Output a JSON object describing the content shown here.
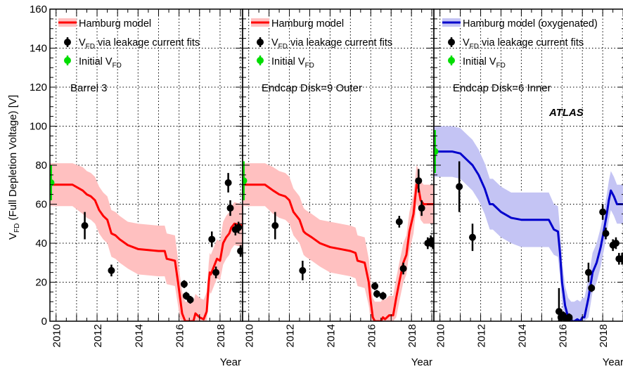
{
  "chart_data": {
    "type": "line",
    "ylabel_main": "V",
    "ylabel_sub": "FD",
    "ylabel_rest": " (Full Depletion Voltage) [V]",
    "ylim": [
      0,
      160
    ],
    "yticks": [
      0,
      20,
      40,
      60,
      80,
      100,
      120,
      140,
      160
    ],
    "xlim": [
      2009.7,
      2019.1
    ],
    "xticks": [
      2010,
      2012,
      2014,
      2016,
      2018
    ],
    "xtick_labels": [
      "2010",
      "2012",
      "2014",
      "2016",
      "2018"
    ],
    "xlabel": "Year",
    "grid": true,
    "atlas_label": "ATLAS",
    "legend_text": {
      "leak_main": "V",
      "leak_sub": "FD",
      "leak_rest": " via leakage current fits",
      "init_main": "Initial V",
      "init_sub": "FD"
    },
    "colors": {
      "red_line": "#ff0000",
      "red_band": "#ffc0c0",
      "blue_line": "#0000cc",
      "blue_band": "#c4c4f4",
      "green": "#00dd00",
      "points": "#000000"
    },
    "panels": [
      {
        "annotation": "Barrel 3",
        "model_label": "Hamburg model",
        "model_color": "red",
        "model": {
          "x": [
            2009.7,
            2010.8,
            2011.3,
            2011.5,
            2011.7,
            2011.9,
            2012.1,
            2012.3,
            2012.5,
            2012.7,
            2012.9,
            2013.1,
            2013.5,
            2014.0,
            2014.5,
            2015.0,
            2015.3,
            2015.4,
            2015.8,
            2015.95,
            2016.05,
            2016.15,
            2016.3,
            2016.5,
            2016.7,
            2016.8,
            2017.0,
            2017.2,
            2017.35,
            2017.45,
            2017.5,
            2017.55,
            2017.7,
            2017.85,
            2018.0,
            2018.15,
            2018.3,
            2018.45,
            2018.55,
            2018.7,
            2019.1
          ],
          "y": [
            70,
            70,
            67,
            65,
            64,
            62,
            57,
            54,
            52,
            45,
            44,
            42,
            39,
            37,
            36.5,
            36,
            36,
            32,
            31,
            20,
            12,
            4,
            0,
            0,
            0,
            4,
            2,
            1,
            5,
            20,
            25,
            24,
            28,
            32,
            31,
            40,
            43,
            45,
            48,
            50,
            49
          ],
          "band_width": [
            11,
            11,
            12,
            12,
            12,
            12,
            12,
            12,
            12,
            12,
            12,
            12,
            12,
            13,
            13,
            13,
            13,
            13,
            13,
            12,
            11,
            11,
            10,
            10,
            10,
            10,
            10,
            10,
            10,
            10,
            10,
            10,
            10,
            10,
            10,
            11,
            11,
            11,
            11,
            11,
            11
          ]
        },
        "initial": {
          "x": 2009.75,
          "y": 71,
          "err": 9
        },
        "points": [
          {
            "x": 2011.4,
            "y": 49,
            "err": 7
          },
          {
            "x": 2012.7,
            "y": 26,
            "err": 3
          },
          {
            "x": 2016.25,
            "y": 19,
            "err": 2
          },
          {
            "x": 2016.35,
            "y": 13,
            "err": 2
          },
          {
            "x": 2016.55,
            "y": 11,
            "err": 2
          },
          {
            "x": 2017.6,
            "y": 42,
            "err": 4
          },
          {
            "x": 2017.8,
            "y": 25,
            "err": 3
          },
          {
            "x": 2018.4,
            "y": 71,
            "err": 5
          },
          {
            "x": 2018.5,
            "y": 58,
            "err": 4
          },
          {
            "x": 2018.75,
            "y": 47,
            "err": 3
          },
          {
            "x": 2018.9,
            "y": 48,
            "err": 3
          },
          {
            "x": 2019.0,
            "y": 36,
            "err": 3
          },
          {
            "x": 2019.1,
            "y": 36,
            "err": 3
          }
        ]
      },
      {
        "annotation": "Endcap Disk=9 Outer",
        "model_label": "Hamburg model",
        "model_color": "red",
        "model": {
          "x": [
            2009.7,
            2010.8,
            2011.2,
            2011.5,
            2011.8,
            2012.0,
            2012.2,
            2012.5,
            2012.7,
            2012.8,
            2013.1,
            2013.5,
            2014.0,
            2014.5,
            2015.0,
            2015.25,
            2015.35,
            2015.7,
            2015.9,
            2016.0,
            2016.1,
            2016.2,
            2016.35,
            2016.5,
            2016.6,
            2016.7,
            2016.9,
            2017.1,
            2017.25,
            2017.4,
            2017.6,
            2017.75,
            2017.9,
            2018.1,
            2018.25,
            2018.35,
            2018.45,
            2018.6,
            2019.1
          ],
          "y": [
            70,
            70,
            67,
            65,
            64,
            62,
            56,
            52,
            46,
            45,
            43,
            40,
            38,
            37,
            36,
            35,
            31,
            30,
            20,
            10,
            2,
            0,
            0,
            0,
            2,
            1,
            3,
            3,
            12,
            20,
            30,
            34,
            46,
            55,
            70,
            68,
            62,
            60,
            60
          ],
          "band_width": [
            11,
            11,
            12,
            12,
            12,
            12,
            12,
            12,
            12,
            12,
            12,
            12,
            13,
            13,
            13,
            13,
            13,
            13,
            12,
            11,
            10,
            10,
            10,
            10,
            10,
            10,
            10,
            10,
            10,
            10,
            10,
            10,
            10,
            10,
            10,
            10,
            10,
            10,
            10
          ]
        },
        "initial": {
          "x": 2009.75,
          "y": 72,
          "err": 10
        },
        "points": [
          {
            "x": 2011.3,
            "y": 49,
            "err": 7
          },
          {
            "x": 2012.65,
            "y": 26,
            "err": 5
          },
          {
            "x": 2016.2,
            "y": 18,
            "err": 2
          },
          {
            "x": 2016.3,
            "y": 14,
            "err": 2
          },
          {
            "x": 2016.6,
            "y": 13,
            "err": 2
          },
          {
            "x": 2017.4,
            "y": 51,
            "err": 3
          },
          {
            "x": 2017.6,
            "y": 27,
            "err": 3
          },
          {
            "x": 2018.35,
            "y": 72,
            "err": 6
          },
          {
            "x": 2018.5,
            "y": 58,
            "err": 4
          },
          {
            "x": 2018.8,
            "y": 40,
            "err": 3
          },
          {
            "x": 2018.95,
            "y": 41,
            "err": 3
          },
          {
            "x": 2019.05,
            "y": 40,
            "err": 3
          }
        ]
      },
      {
        "annotation": "Endcap Disk=6 Inner",
        "model_label": "Hamburg model (oxygenated)",
        "model_color": "blue",
        "model": {
          "x": [
            2009.7,
            2010.6,
            2011.0,
            2011.3,
            2011.6,
            2011.9,
            2012.2,
            2012.45,
            2012.6,
            2013.0,
            2013.5,
            2014.0,
            2014.5,
            2015.0,
            2015.2,
            2015.35,
            2015.6,
            2015.8,
            2015.9,
            2016.0,
            2016.15,
            2016.3,
            2016.45,
            2016.6,
            2016.75,
            2016.9,
            2017.0,
            2017.1,
            2017.3,
            2017.5,
            2017.7,
            2017.9,
            2018.05,
            2018.2,
            2018.3,
            2018.4,
            2018.55,
            2018.7,
            2019.1
          ],
          "y": [
            87,
            87,
            86,
            83,
            80,
            75,
            68,
            60,
            60,
            56,
            53,
            52,
            52,
            52,
            52,
            52,
            47,
            46,
            35,
            20,
            8,
            2,
            0,
            0,
            1,
            0,
            2,
            2,
            12,
            25,
            30,
            38,
            46,
            55,
            62,
            67,
            64,
            60,
            60
          ],
          "band_width": [
            13,
            13,
            13,
            13,
            13,
            13,
            13,
            13,
            13,
            13,
            13,
            14,
            14,
            14,
            14,
            14,
            13,
            13,
            12,
            11,
            10,
            10,
            10,
            10,
            10,
            10,
            10,
            10,
            10,
            10,
            10,
            10,
            10,
            10,
            10,
            10,
            10,
            10,
            10
          ]
        },
        "initial": {
          "x": 2009.75,
          "y": 87,
          "err": 11
        },
        "points": [
          {
            "x": 2010.95,
            "y": 69,
            "err": 13
          },
          {
            "x": 2011.6,
            "y": 43,
            "err": 7
          },
          {
            "x": 2015.85,
            "y": 5,
            "err": 12
          },
          {
            "x": 2015.95,
            "y": 2,
            "err": 2
          },
          {
            "x": 2016.05,
            "y": 3,
            "err": 2
          },
          {
            "x": 2016.2,
            "y": 1,
            "err": 2
          },
          {
            "x": 2016.35,
            "y": 2,
            "err": 2
          },
          {
            "x": 2017.3,
            "y": 25,
            "err": 5
          },
          {
            "x": 2017.45,
            "y": 17,
            "err": 2
          },
          {
            "x": 2018.0,
            "y": 56,
            "err": 4
          },
          {
            "x": 2018.15,
            "y": 45,
            "err": 3
          },
          {
            "x": 2018.5,
            "y": 39,
            "err": 3
          },
          {
            "x": 2018.65,
            "y": 40,
            "err": 3
          },
          {
            "x": 2018.8,
            "y": 32,
            "err": 3
          },
          {
            "x": 2018.95,
            "y": 32,
            "err": 3
          }
        ]
      }
    ]
  }
}
